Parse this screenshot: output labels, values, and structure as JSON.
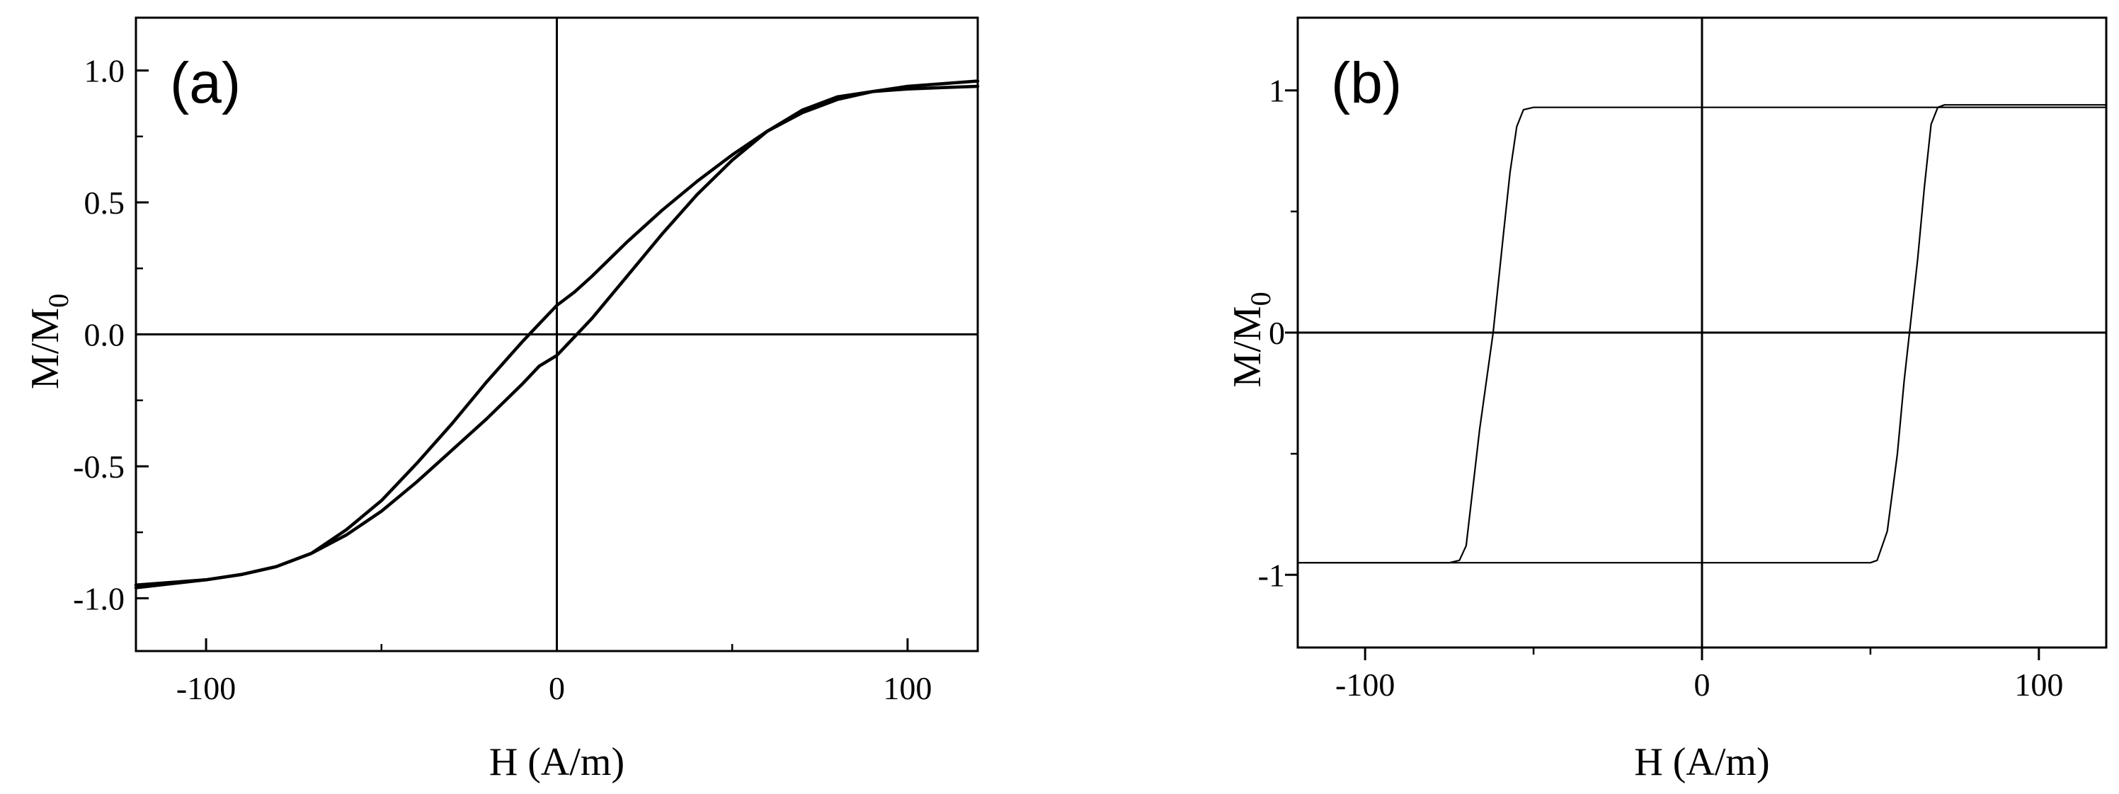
{
  "chart_data": [
    {
      "type": "line",
      "panel_label": "(a)",
      "xlabel": "H (A/m)",
      "ylabel": "M/M",
      "ylabel_sub": "0",
      "xlim": [
        -120,
        120
      ],
      "ylim": [
        -1.2,
        1.2
      ],
      "xticks": [
        -100,
        0,
        100
      ],
      "xtick_labels": [
        "-100",
        "0",
        "100"
      ],
      "yticks": [
        -1.0,
        -0.5,
        0.0,
        0.5,
        1.0
      ],
      "ytick_labels": [
        "-1.0",
        "-0.5",
        "0.0",
        "0.5",
        "1.0"
      ],
      "zero_lines": true,
      "series": [
        {
          "x": [
            -120,
            -110,
            -100,
            -90,
            -80,
            -70,
            -60,
            -50,
            -40,
            -30,
            -20,
            -10,
            -5,
            0,
            5,
            10,
            20,
            30,
            40,
            50,
            60,
            70,
            80,
            90,
            100,
            110,
            120
          ],
          "y": [
            -0.95,
            -0.94,
            -0.93,
            -0.91,
            -0.88,
            -0.83,
            -0.76,
            -0.67,
            -0.56,
            -0.44,
            -0.32,
            -0.19,
            -0.12,
            -0.08,
            -0.01,
            0.06,
            0.22,
            0.38,
            0.53,
            0.66,
            0.77,
            0.85,
            0.9,
            0.92,
            0.93,
            0.935,
            0.94
          ]
        },
        {
          "x": [
            120,
            110,
            100,
            90,
            80,
            70,
            60,
            50,
            40,
            30,
            20,
            10,
            5,
            0,
            -5,
            -10,
            -20,
            -30,
            -40,
            -50,
            -60,
            -70,
            -80,
            -90,
            -100,
            -110,
            -120
          ],
          "y": [
            0.96,
            0.95,
            0.94,
            0.92,
            0.89,
            0.84,
            0.77,
            0.68,
            0.58,
            0.47,
            0.35,
            0.22,
            0.16,
            0.11,
            0.04,
            -0.03,
            -0.18,
            -0.34,
            -0.49,
            -0.63,
            -0.74,
            -0.83,
            -0.88,
            -0.91,
            -0.93,
            -0.945,
            -0.96
          ]
        }
      ]
    },
    {
      "type": "line",
      "panel_label": "(b)",
      "xlabel": "H (A/m)",
      "ylabel": "M/M",
      "ylabel_sub": "0",
      "xlim": [
        -120,
        120
      ],
      "ylim": [
        -1.3,
        1.3
      ],
      "xticks": [
        -100,
        0,
        100
      ],
      "xtick_labels": [
        "-100",
        "0",
        "100"
      ],
      "yticks": [
        -1,
        0,
        1
      ],
      "ytick_labels": [
        "-1",
        "0",
        "1"
      ],
      "zero_lines": true,
      "series": [
        {
          "x": [
            -120,
            -80,
            -75,
            -72,
            -70,
            -66,
            -62,
            -59,
            -57,
            -55,
            -53,
            -50,
            0,
            60,
            120
          ],
          "y": [
            -0.95,
            -0.95,
            -0.95,
            -0.94,
            -0.88,
            -0.4,
            0.0,
            0.4,
            0.66,
            0.85,
            0.92,
            0.93,
            0.93,
            0.93,
            0.93
          ]
        },
        {
          "x": [
            120,
            75,
            72,
            70,
            68,
            66,
            64,
            62,
            60,
            58,
            55,
            52,
            50,
            0,
            -60,
            -120
          ],
          "y": [
            0.94,
            0.94,
            0.94,
            0.93,
            0.86,
            0.6,
            0.3,
            0.05,
            -0.2,
            -0.5,
            -0.82,
            -0.94,
            -0.95,
            -0.95,
            -0.95,
            -0.95
          ]
        }
      ]
    }
  ]
}
